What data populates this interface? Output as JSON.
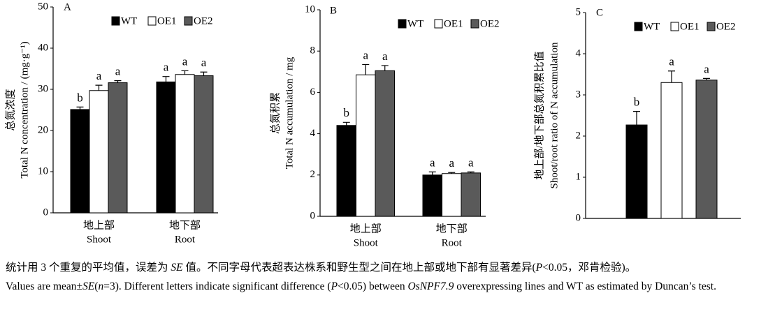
{
  "chart_data": [
    {
      "type": "bar",
      "panel": "A",
      "ylabel_zh": "总氮浓度",
      "ylabel_en": "Total N concentration / (mg·g⁻¹)",
      "categories": [
        "地上部",
        "地下部"
      ],
      "categories_en": [
        "Shoot",
        "Root"
      ],
      "ylim": [
        0,
        50
      ],
      "yticks": [
        0,
        10,
        20,
        30,
        40,
        50
      ],
      "series": [
        {
          "name": "WT",
          "color": "#000000",
          "values": [
            25.1,
            31.8
          ],
          "errors": [
            0.6,
            1.3
          ],
          "letters": [
            "b",
            "a"
          ]
        },
        {
          "name": "OE1",
          "color": "#ffffff",
          "values": [
            29.7,
            33.6
          ],
          "errors": [
            1.3,
            0.9
          ],
          "letters": [
            "a",
            "a"
          ]
        },
        {
          "name": "OE2",
          "color": "#5a5a5a",
          "values": [
            31.6,
            33.3
          ],
          "errors": [
            0.5,
            0.9
          ],
          "letters": [
            "a",
            "a"
          ]
        }
      ]
    },
    {
      "type": "bar",
      "panel": "B",
      "ylabel_zh": "总氮积累",
      "ylabel_en": "Total N accumulation / mg",
      "categories": [
        "地上部",
        "地下部"
      ],
      "categories_en": [
        "Shoot",
        "Root"
      ],
      "ylim": [
        0,
        10
      ],
      "yticks": [
        0,
        2,
        4,
        6,
        8,
        10
      ],
      "series": [
        {
          "name": "WT",
          "color": "#000000",
          "values": [
            4.4,
            2.0
          ],
          "errors": [
            0.15,
            0.15
          ],
          "letters": [
            "b",
            "a"
          ]
        },
        {
          "name": "OE1",
          "color": "#ffffff",
          "values": [
            6.85,
            2.07
          ],
          "errors": [
            0.5,
            0.05
          ],
          "letters": [
            "a",
            "a"
          ]
        },
        {
          "name": "OE2",
          "color": "#5a5a5a",
          "values": [
            7.05,
            2.1
          ],
          "errors": [
            0.25,
            0.05
          ],
          "letters": [
            "a",
            "a"
          ]
        }
      ]
    },
    {
      "type": "bar",
      "panel": "C",
      "ylabel_zh": "地上部/地下部总氮积累比值",
      "ylabel_en": "Shoot/root ratio of N accumulation",
      "categories": [
        null
      ],
      "categories_en": [
        null
      ],
      "ylim": [
        0,
        5
      ],
      "yticks": [
        0,
        1,
        2,
        3,
        4,
        5
      ],
      "series": [
        {
          "name": "WT",
          "color": "#000000",
          "values": [
            2.27
          ],
          "errors": [
            0.33
          ],
          "letters": [
            "b"
          ]
        },
        {
          "name": "OE1",
          "color": "#ffffff",
          "values": [
            3.3
          ],
          "errors": [
            0.28
          ],
          "letters": [
            "a"
          ]
        },
        {
          "name": "OE2",
          "color": "#5a5a5a",
          "values": [
            3.36
          ],
          "errors": [
            0.04
          ],
          "letters": [
            "a"
          ]
        }
      ]
    }
  ],
  "caption": {
    "zh": [
      {
        "text": "统计用 3 个重复的平均值，误差为 ",
        "italic": false
      },
      {
        "text": "SE",
        "italic": true
      },
      {
        "text": " 值。不同字母代表超表达株系和野生型之间在地上部或地下部有显著差异(",
        "italic": false
      },
      {
        "text": "P",
        "italic": true
      },
      {
        "text": "<0.05，邓肯检验)。",
        "italic": false
      }
    ],
    "en": [
      {
        "text": "Values are mean±",
        "italic": false
      },
      {
        "text": "SE",
        "italic": true
      },
      {
        "text": "(",
        "italic": false
      },
      {
        "text": "n",
        "italic": true
      },
      {
        "text": "=3). Different letters indicate significant difference (",
        "italic": false
      },
      {
        "text": "P",
        "italic": true
      },
      {
        "text": "<0.05) between ",
        "italic": false
      },
      {
        "text": "OsNPF7.9",
        "italic": true
      },
      {
        "text": " overexpressing lines and WT as estimated by Duncan’s test.",
        "italic": false
      }
    ]
  }
}
